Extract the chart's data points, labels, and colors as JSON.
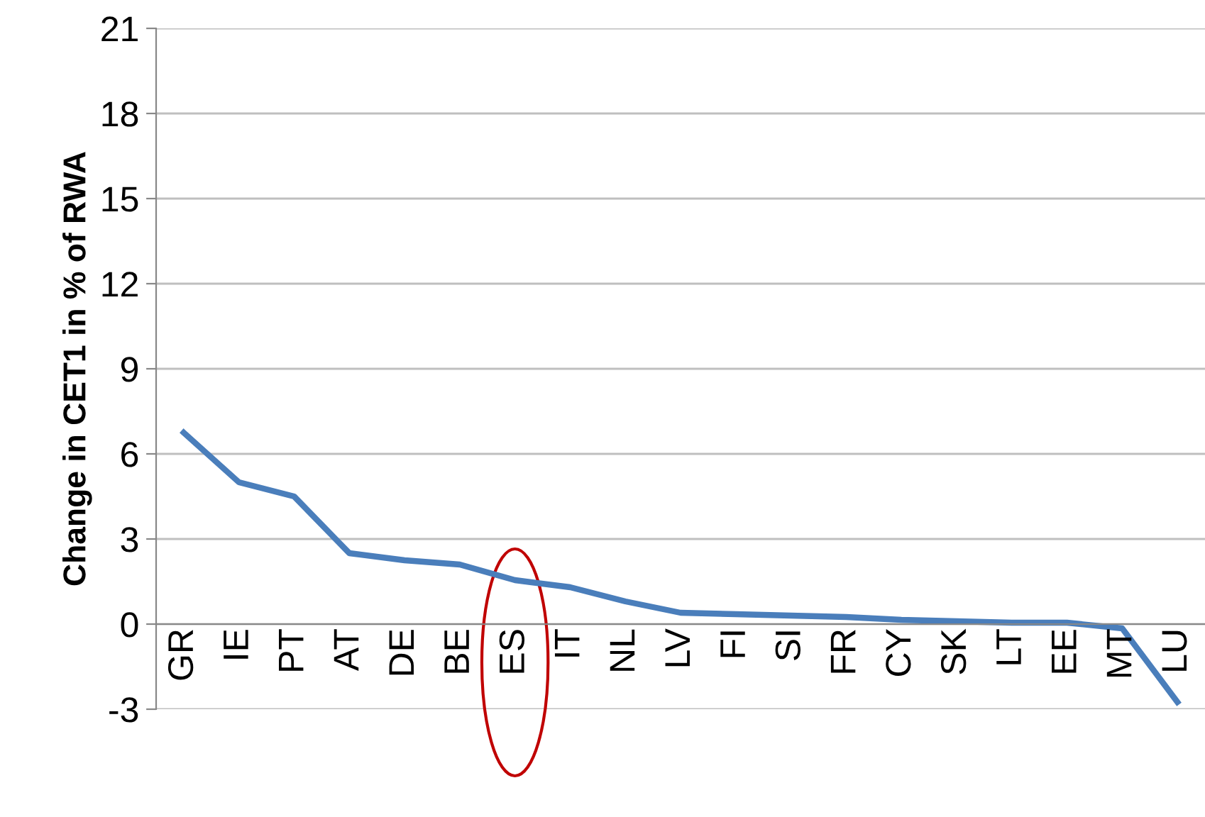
{
  "chart_data": {
    "type": "line",
    "ylabel": "Change in CET1 in % of RWA",
    "categories": [
      "GR",
      "IE",
      "PT",
      "AT",
      "DE",
      "BE",
      "ES",
      "IT",
      "NL",
      "LV",
      "FI",
      "SI",
      "FR",
      "CY",
      "SK",
      "LT",
      "EE",
      "MT",
      "LU"
    ],
    "series": [
      {
        "color": "#4a7ebb",
        "values": [
          6.75,
          5.0,
          4.5,
          2.5,
          2.25,
          2.1,
          1.55,
          1.3,
          0.8,
          0.4,
          0.35,
          0.3,
          0.25,
          0.15,
          0.1,
          0.05,
          0.05,
          -0.15,
          -2.75
        ]
      }
    ],
    "ylim": [
      -3,
      21
    ],
    "yticks": [
      -3,
      0,
      3,
      6,
      9,
      12,
      15,
      18,
      21
    ],
    "grid": "y",
    "marker": "none",
    "line_style": "solid",
    "legend": false
  }
}
